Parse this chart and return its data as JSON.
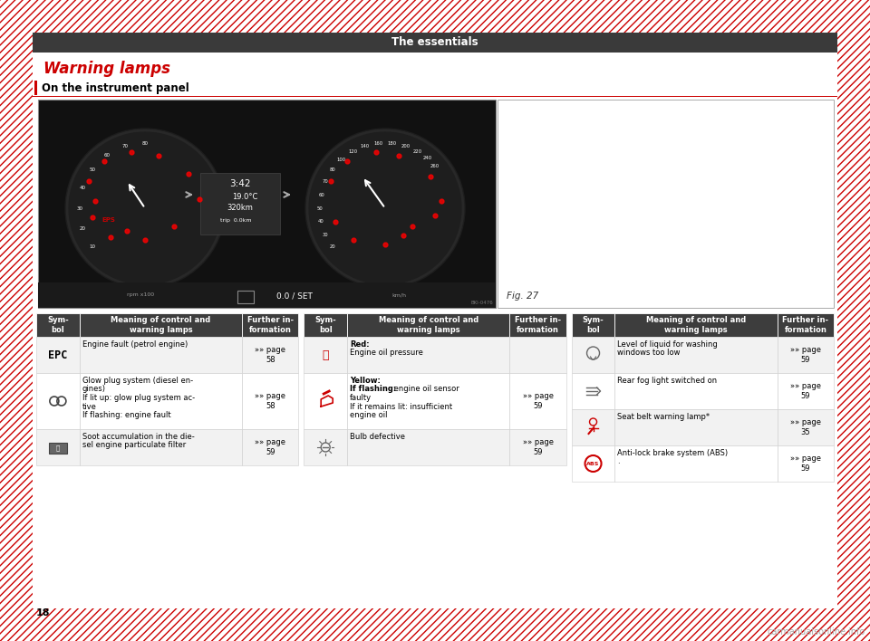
{
  "title": "The essentials",
  "title_bg": "#3a3a3a",
  "title_color": "#ffffff",
  "section_title": "Warning lamps",
  "section_title_color": "#cc0000",
  "subsection_title": "On the instrument panel",
  "subsection_color": "#000000",
  "fig_label": "Fig. 27",
  "page_bg": "#ffffff",
  "border_color": "#cc0000",
  "page_number": "18",
  "table_header_bg": "#3d3d3d",
  "table_header_color": "#ffffff",
  "table_row_alt_bg": "#f2f2f2",
  "table_row_bg": "#ffffff",
  "table_border": "#cccccc",
  "col_headers": [
    "Sym-\nbol",
    "Meaning of control and\nwarning lamps",
    "Further in-\nformation"
  ],
  "table1_rows": [
    {
      "symbol": "EPC",
      "meaning": "Engine fault (petrol engine)",
      "further": "»» page\n58",
      "meaning_bold_prefix": ""
    },
    {
      "symbol": "glow",
      "meaning": "Glow plug system (diesel en-\ngines)\nIf lit up: glow plug system ac-\ntive\nIf flashing: engine fault",
      "further": "»» page\n58",
      "meaning_bold_prefix": ""
    },
    {
      "symbol": "soot",
      "meaning": "Soot accumulation in the die-\nsel engine particulate filter",
      "further": "»» page\n59",
      "meaning_bold_prefix": ""
    }
  ],
  "table2_rows": [
    {
      "symbol": "oil_red",
      "meaning": "Red:\nEngine oil pressure",
      "further": "",
      "meaning_bold_prefix": "Red:"
    },
    {
      "symbol": "oil_yellow",
      "meaning": "Yellow:\nIf flashing: engine oil sensor\nfaulty\nIf it remains lit: insufficient\nengine oil",
      "further": "»» page\n59",
      "meaning_bold_prefix": "Yellow:"
    },
    {
      "symbol": "bulb",
      "meaning": "Bulb defective",
      "further": "»» page\n59",
      "meaning_bold_prefix": ""
    }
  ],
  "table3_rows": [
    {
      "symbol": "wash",
      "meaning": "Level of liquid for washing\nwindows too low",
      "further": "»» page\n59",
      "meaning_bold_prefix": ""
    },
    {
      "symbol": "fog",
      "meaning": "Rear fog light switched on",
      "further": "»» page\n59",
      "meaning_bold_prefix": ""
    },
    {
      "symbol": "belt",
      "meaning": "Seat belt warning lamp*",
      "further": "»» page\n35",
      "meaning_bold_prefix": ""
    },
    {
      "symbol": "abs",
      "meaning": "Anti-lock brake system (ABS)\n.",
      "further": "»» page\n59",
      "meaning_bold_prefix": ""
    }
  ]
}
